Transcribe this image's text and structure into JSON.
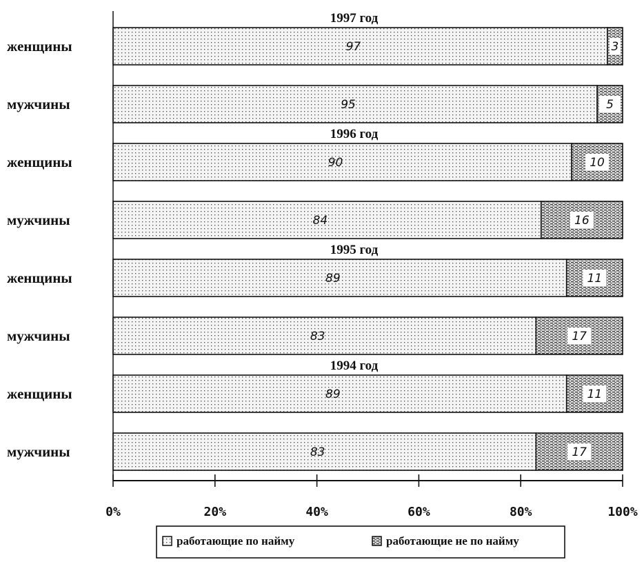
{
  "chart_data": {
    "type": "bar",
    "stacked": true,
    "orientation": "horizontal",
    "unit": "%",
    "xlim": [
      0,
      100
    ],
    "x_ticks": [
      "0%",
      "20%",
      "40%",
      "60%",
      "80%",
      "100%"
    ],
    "groups": [
      {
        "title": "1997 год",
        "rows": [
          {
            "label": "женщины",
            "values": [
              97,
              3
            ]
          },
          {
            "label": "мужчины",
            "values": [
              95,
              5
            ]
          }
        ]
      },
      {
        "title": "1996 год",
        "rows": [
          {
            "label": "женщины",
            "values": [
              90,
              10
            ]
          },
          {
            "label": "мужчины",
            "values": [
              84,
              16
            ]
          }
        ]
      },
      {
        "title": "1995 год",
        "rows": [
          {
            "label": "женщины",
            "values": [
              89,
              11
            ]
          },
          {
            "label": "мужчины",
            "values": [
              83,
              17
            ]
          }
        ]
      },
      {
        "title": "1994 год",
        "rows": [
          {
            "label": "женщины",
            "values": [
              89,
              11
            ]
          },
          {
            "label": "мужчины",
            "values": [
              83,
              17
            ]
          }
        ]
      }
    ],
    "series": [
      {
        "name": "работающие по найму",
        "pattern": "dots"
      },
      {
        "name": "работающие не по найму",
        "pattern": "dense-hatch"
      }
    ],
    "legend_position": "bottom"
  }
}
